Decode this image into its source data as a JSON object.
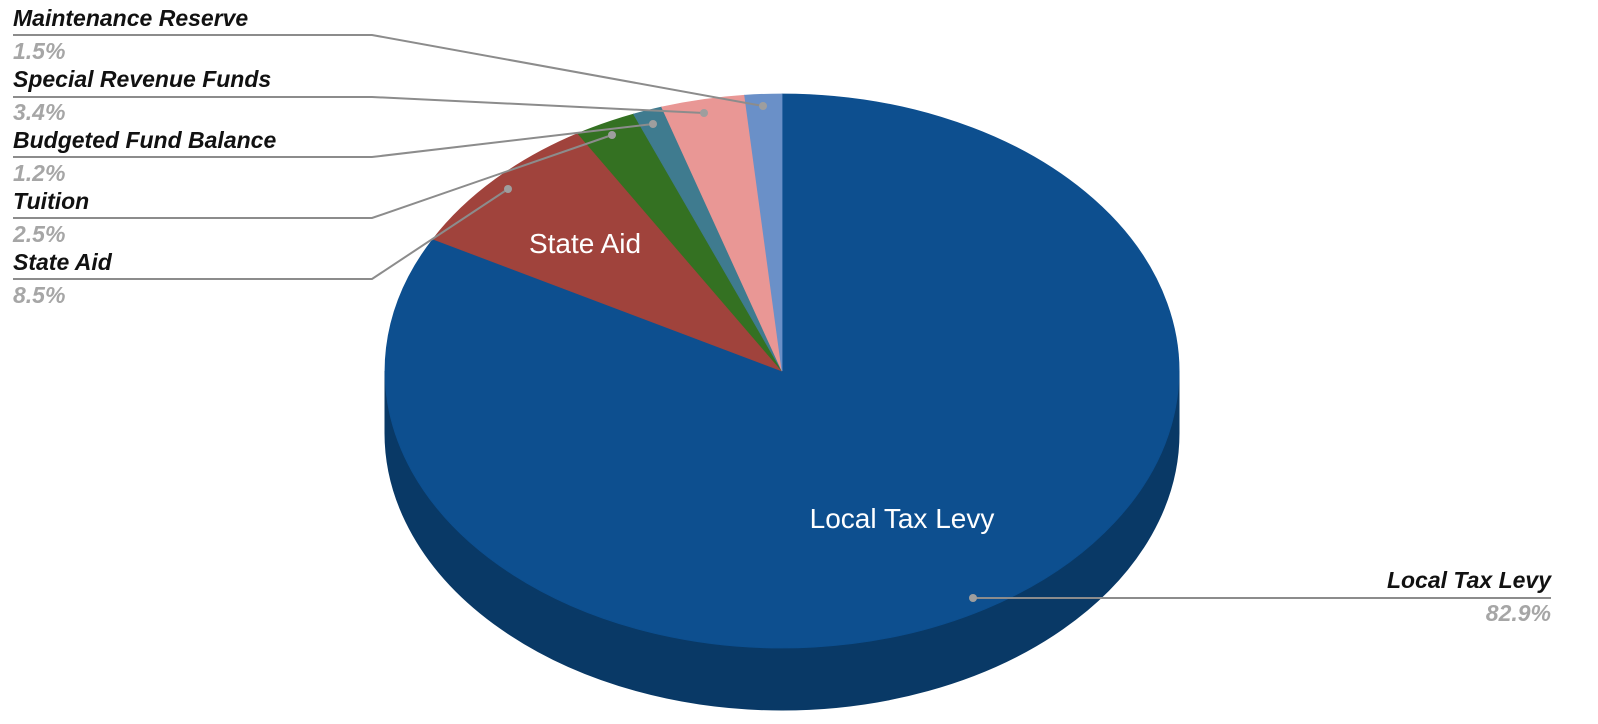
{
  "chart_data": {
    "type": "pie",
    "style": "3d",
    "slices": [
      {
        "label": "Local Tax Levy",
        "value": 82.9,
        "display": "82.9%",
        "color": "#0d4f8f",
        "side_color": "#093966"
      },
      {
        "label": "State Aid",
        "value": 8.5,
        "display": "8.5%",
        "color": "#a0433c",
        "side_color": "#7a322d"
      },
      {
        "label": "Tuition",
        "value": 2.5,
        "display": "2.5%",
        "color": "#347122",
        "side_color": "#27551a"
      },
      {
        "label": "Budgeted Fund Balance",
        "value": 1.2,
        "display": "1.2%",
        "color": "#3f7b8f",
        "side_color": "#2f5c6b"
      },
      {
        "label": "Special Revenue Funds",
        "value": 3.4,
        "display": "3.4%",
        "color": "#e99795",
        "side_color": "#b97270"
      },
      {
        "label": "Maintenance Reserve",
        "value": 1.5,
        "display": "1.5%",
        "color": "#6a90c8",
        "side_color": "#4f6d99"
      }
    ],
    "inside_labels": [
      "State Aid",
      "Local Tax Levy"
    ],
    "legend": "none"
  }
}
